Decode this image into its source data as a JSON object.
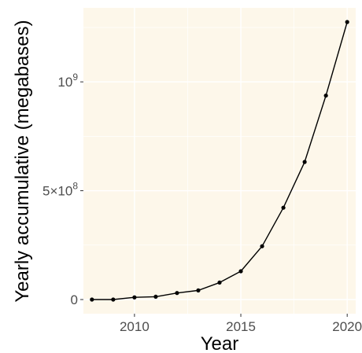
{
  "chart_data": {
    "type": "line",
    "title": "",
    "xlabel": "Year",
    "ylabel": "Yearly accumulative (megabases)",
    "x": [
      2008,
      2009,
      2010,
      2011,
      2012,
      2013,
      2014,
      2015,
      2016,
      2017,
      2018,
      2019,
      2020
    ],
    "series": [
      {
        "values": [
          0,
          0,
          10000000,
          13000000,
          30000000,
          42000000,
          78000000,
          130000000,
          245000000,
          422000000,
          632000000,
          937000000,
          1275000000
        ]
      }
    ],
    "xlim": [
      2007.6,
      2020.4
    ],
    "ylim": [
      -65000000,
      1340000000
    ],
    "x_ticks": [
      {
        "value": 2010,
        "label": "2010"
      },
      {
        "value": 2015,
        "label": "2015"
      },
      {
        "value": 2020,
        "label": "2020"
      }
    ],
    "y_ticks": [
      {
        "value": 0,
        "label": "0"
      },
      {
        "value": 500000000,
        "label_base": "5×10",
        "label_exp": "8"
      },
      {
        "value": 1000000000,
        "label_base": "10",
        "label_exp": "9"
      }
    ],
    "grid": true,
    "legend": "none",
    "colors": {
      "panel_background": "#fdf7ea",
      "grid": "#ffffff",
      "line": "#000000",
      "point": "#000000",
      "tick_label": "#4d4d4d"
    }
  }
}
